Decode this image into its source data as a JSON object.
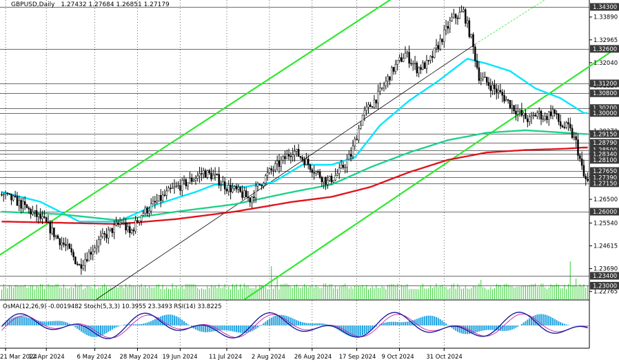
{
  "header": {
    "symbol": "GBPUSD,Daily",
    "ohlc": "1.27432 1.27684 1.26851 1.27179"
  },
  "indicator_header": "OsMA(12,26,9) -0.0019482  Stoch(5,3,3) 10.3955 23.3493  RSI(14) 33.8225",
  "colors": {
    "candles": "#000000",
    "ema_fast": "#00e5ff",
    "ema_mid": "#1fd18c",
    "ema_slow": "#e0141e",
    "channel": "#2ee82e",
    "trendline": "#000000",
    "level_lines": "#3a3a3a",
    "osma": "#1fa3e0",
    "stoch_main": "#1a1a9e",
    "stoch_signal": "#cc1d9e",
    "volume": "#2ed12e"
  },
  "chart_data": {
    "type": "candlestick",
    "instrument": "GBPUSD",
    "timeframe": "Daily",
    "x_tick_labels": [
      "21 Mar 2024",
      "12 Apr 2024",
      "6 May 2024",
      "28 May 2024",
      "19 Jun 2024",
      "11 Jul 2024",
      "2 Aug 2024",
      "26 Aug 2024",
      "17 Sep 2024",
      "9 Oct 2024",
      "31 Oct 2024"
    ],
    "y_axis_ticks": [
      "1.33890",
      "1.32965",
      "1.32040",
      "1.31120",
      "1.30195",
      "1.29270",
      "1.28350",
      "1.27425",
      "1.26500",
      "1.25540",
      "1.24615",
      "1.23690",
      "1.22765"
    ],
    "ylim": [
      1.2245,
      1.3458
    ],
    "level_labels": [
      "1.34300",
      "1.32600",
      "1.31200",
      "1.30800",
      "1.30200",
      "1.30000",
      "1.29150",
      "1.28790",
      "1.28500",
      "1.28340",
      "1.28100",
      "1.27650",
      "1.27390",
      "1.27150",
      "1.26000",
      "1.23400",
      "1.23000"
    ],
    "levels": [
      1.343,
      1.326,
      1.312,
      1.308,
      1.302,
      1.3,
      1.2915,
      1.2879,
      1.285,
      1.2834,
      1.281,
      1.2765,
      1.2739,
      1.2715,
      1.26,
      1.234,
      1.23
    ],
    "close_path": [
      [
        0,
        1.267
      ],
      [
        8,
        1.264
      ],
      [
        15,
        1.26
      ],
      [
        22,
        1.256
      ],
      [
        28,
        1.25
      ],
      [
        34,
        1.245
      ],
      [
        40,
        1.238
      ],
      [
        44,
        1.242
      ],
      [
        50,
        1.248
      ],
      [
        56,
        1.252
      ],
      [
        62,
        1.256
      ],
      [
        66,
        1.251
      ],
      [
        72,
        1.259
      ],
      [
        80,
        1.264
      ],
      [
        88,
        1.269
      ],
      [
        96,
        1.272
      ],
      [
        104,
        1.276
      ],
      [
        110,
        1.274
      ],
      [
        116,
        1.27
      ],
      [
        122,
        1.268
      ],
      [
        128,
        1.265
      ],
      [
        132,
        1.27
      ],
      [
        138,
        1.276
      ],
      [
        144,
        1.28
      ],
      [
        150,
        1.285
      ],
      [
        156,
        1.281
      ],
      [
        162,
        1.276
      ],
      [
        168,
        1.272
      ],
      [
        174,
        1.276
      ],
      [
        180,
        1.283
      ],
      [
        186,
        1.299
      ],
      [
        194,
        1.307
      ],
      [
        202,
        1.318
      ],
      [
        208,
        1.324
      ],
      [
        214,
        1.318
      ],
      [
        220,
        1.32
      ],
      [
        226,
        1.329
      ],
      [
        232,
        1.338
      ],
      [
        238,
        1.341
      ],
      [
        242,
        1.33
      ],
      [
        246,
        1.315
      ],
      [
        252,
        1.311
      ],
      [
        258,
        1.307
      ],
      [
        264,
        1.302
      ],
      [
        268,
        1.299
      ],
      [
        272,
        1.297
      ],
      [
        276,
        1.3
      ],
      [
        280,
        1.298
      ],
      [
        284,
        1.301
      ],
      [
        288,
        1.295
      ],
      [
        292,
        1.294
      ],
      [
        296,
        1.288
      ],
      [
        300,
        1.274
      ],
      [
        302,
        1.2718
      ]
    ],
    "series": [
      {
        "name": "Fast moving average",
        "color": "#00e5ff",
        "values": [
          [
            0,
            1.268
          ],
          [
            20,
            1.264
          ],
          [
            40,
            1.256
          ],
          [
            60,
            1.256
          ],
          [
            80,
            1.263
          ],
          [
            100,
            1.268
          ],
          [
            110,
            1.271
          ],
          [
            125,
            1.27
          ],
          [
            140,
            1.272
          ],
          [
            155,
            1.279
          ],
          [
            170,
            1.279
          ],
          [
            182,
            1.282
          ],
          [
            195,
            1.295
          ],
          [
            210,
            1.305
          ],
          [
            225,
            1.313
          ],
          [
            240,
            1.322
          ],
          [
            250,
            1.32
          ],
          [
            262,
            1.317
          ],
          [
            275,
            1.31
          ],
          [
            288,
            1.306
          ],
          [
            300,
            1.3
          ]
        ]
      },
      {
        "name": "Middle moving average",
        "color": "#1fd18c",
        "values": [
          [
            0,
            1.26
          ],
          [
            30,
            1.259
          ],
          [
            60,
            1.2565
          ],
          [
            90,
            1.26
          ],
          [
            120,
            1.263
          ],
          [
            150,
            1.268
          ],
          [
            170,
            1.271
          ],
          [
            190,
            1.278
          ],
          [
            210,
            1.284
          ],
          [
            230,
            1.289
          ],
          [
            250,
            1.292
          ],
          [
            270,
            1.293
          ],
          [
            290,
            1.292
          ],
          [
            300,
            1.2915
          ]
        ]
      },
      {
        "name": "Slow moving average",
        "color": "#e0141e",
        "values": [
          [
            0,
            1.256
          ],
          [
            30,
            1.2555
          ],
          [
            60,
            1.255
          ],
          [
            90,
            1.257
          ],
          [
            120,
            1.26
          ],
          [
            150,
            1.264
          ],
          [
            170,
            1.266
          ],
          [
            190,
            1.27
          ],
          [
            210,
            1.276
          ],
          [
            230,
            1.281
          ],
          [
            250,
            1.284
          ],
          [
            270,
            1.285
          ],
          [
            290,
            1.2855
          ],
          [
            300,
            1.286
          ]
        ]
      }
    ]
  }
}
